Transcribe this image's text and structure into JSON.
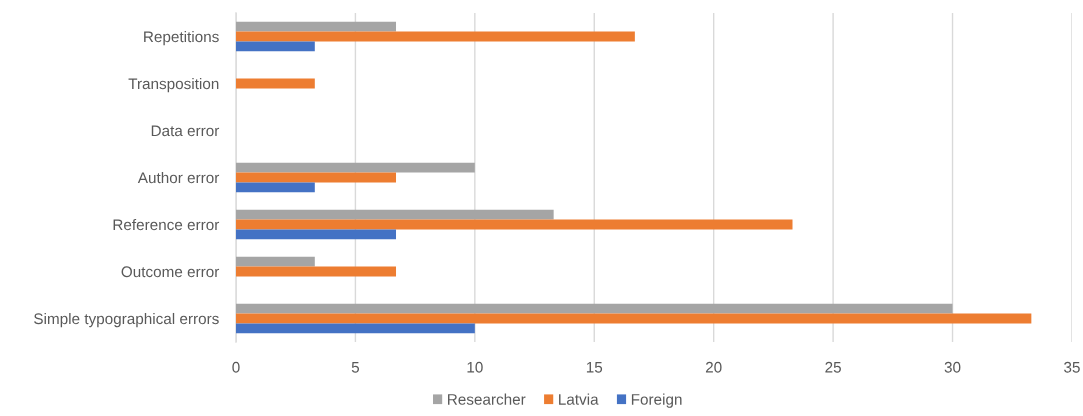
{
  "chart_data": {
    "type": "bar",
    "orientation": "horizontal",
    "categories": [
      "Repetitions",
      "Transposition",
      "Data error",
      "Author error",
      "Reference error",
      "Outcome error",
      "Simple typographical errors"
    ],
    "series": [
      {
        "name": "Researcher",
        "color": "#a5a5a5",
        "values": [
          6.7,
          0,
          0,
          10,
          13.3,
          3.3,
          30
        ]
      },
      {
        "name": "Latvia",
        "color": "#ed7d31",
        "values": [
          16.7,
          3.3,
          0,
          6.7,
          23.3,
          6.7,
          33.3
        ]
      },
      {
        "name": "Foreign",
        "color": "#4472c4",
        "values": [
          3.3,
          0,
          0,
          3.3,
          6.7,
          0,
          10
        ]
      }
    ],
    "xlim": [
      0,
      35
    ],
    "xticks": [
      0,
      5,
      10,
      15,
      20,
      25,
      30,
      35
    ],
    "grid": "x",
    "legend": "bottom"
  }
}
